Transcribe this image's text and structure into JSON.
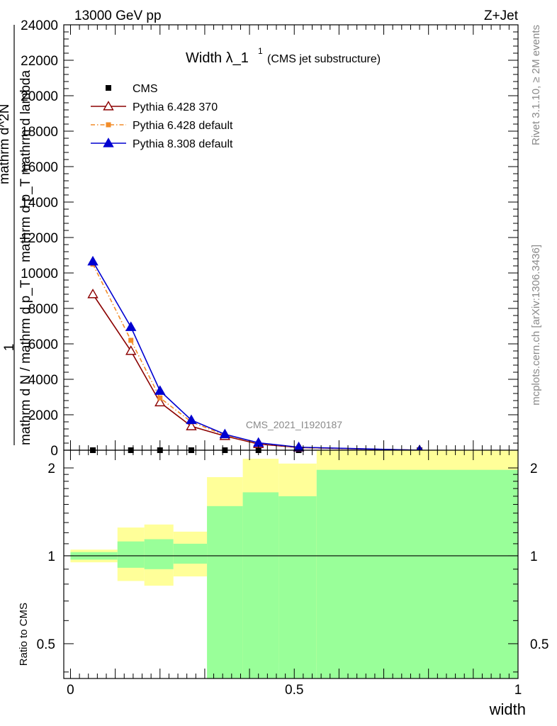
{
  "header": {
    "energy_label": "13000 GeV pp",
    "process_label": "Z+Jet"
  },
  "side_labels": {
    "rivet": "Rivet 3.1.10, ≥ 2M events",
    "mcplots": "mcplots.cern.ch [arXiv:1306.3436]"
  },
  "watermark": "CMS_2021_I1920187",
  "colors": {
    "cms": "#000000",
    "pythia6_370": "#8b0000",
    "pythia6_default": "#f28c28",
    "pythia8_default": "#0000d0",
    "band_outer": "#ffff99",
    "band_inner": "#99ff99"
  },
  "chart_data": [
    {
      "type": "line",
      "title_main": "Width λ_1",
      "title_sup": "1",
      "title_sub": "(CMS jet substructure)",
      "ylabel_lines": [
        "1",
        "mathrm d N / mathrm d p_T",
        "mathrm d^2N",
        "mathrm d p_T mathrm d lambda"
      ],
      "xlim": [
        -0.015,
        1.0
      ],
      "ylim": [
        0,
        24000
      ],
      "yticks": [
        0,
        2000,
        4000,
        6000,
        8000,
        10000,
        12000,
        14000,
        16000,
        18000,
        20000,
        22000,
        24000
      ],
      "ytick_labels": [
        "0",
        "2000",
        "4000",
        "6000",
        "8000",
        "10000",
        "12000",
        "14000",
        "16000",
        "18000",
        "20000",
        "22000",
        "24000"
      ],
      "legend_position": "top-left",
      "series": [
        {
          "name": "CMS",
          "marker": "square",
          "x": [
            0.05,
            0.135,
            0.2,
            0.27,
            0.345,
            0.42,
            0.51,
            0.78
          ],
          "y": [
            0,
            0,
            0,
            0,
            0,
            0,
            0,
            0
          ]
        },
        {
          "name": "Pythia 6.428 370",
          "marker": "open-triangle",
          "line": "solid",
          "x": [
            0.05,
            0.135,
            0.2,
            0.27,
            0.345,
            0.42,
            0.51,
            0.78
          ],
          "y": [
            8800,
            5600,
            2700,
            1350,
            800,
            350,
            150,
            0
          ]
        },
        {
          "name": "Pythia 6.428 default",
          "marker": "square",
          "line": "dashdot",
          "x": [
            0.05,
            0.135,
            0.2,
            0.27,
            0.345,
            0.42,
            0.51,
            0.78
          ],
          "y": [
            10500,
            6200,
            2950,
            1600,
            850,
            400,
            160,
            0
          ]
        },
        {
          "name": "Pythia 8.308 default",
          "marker": "triangle",
          "line": "solid",
          "x": [
            0.05,
            0.135,
            0.2,
            0.27,
            0.345,
            0.42,
            0.51,
            0.78
          ],
          "y": [
            10650,
            6950,
            3350,
            1700,
            900,
            420,
            170,
            0
          ]
        }
      ]
    },
    {
      "type": "area",
      "ylabel": "Ratio to CMS",
      "xlabel": "width",
      "scale": "log",
      "ylim": [
        0.38,
        2.3
      ],
      "yticks": [
        0.5,
        1,
        2
      ],
      "ytick_labels": [
        "0.5",
        "1",
        "2"
      ],
      "xticks": [
        0,
        0.5,
        1
      ],
      "xtick_labels": [
        "0",
        "0.5",
        "1"
      ],
      "reference_line": 1,
      "bins": [
        {
          "x0": 0.0,
          "x1": 0.105,
          "inner": [
            0.97,
            1.03
          ],
          "outer": [
            0.95,
            1.05
          ]
        },
        {
          "x0": 0.105,
          "x1": 0.165,
          "inner": [
            0.91,
            1.12
          ],
          "outer": [
            0.82,
            1.25
          ]
        },
        {
          "x0": 0.165,
          "x1": 0.23,
          "inner": [
            0.9,
            1.14
          ],
          "outer": [
            0.79,
            1.28
          ]
        },
        {
          "x0": 0.23,
          "x1": 0.305,
          "inner": [
            0.94,
            1.1
          ],
          "outer": [
            0.85,
            1.21
          ]
        },
        {
          "x0": 0.305,
          "x1": 0.385,
          "inner": [
            0.38,
            1.48
          ],
          "outer": [
            0.6,
            1.86
          ]
        },
        {
          "x0": 0.385,
          "x1": 0.465,
          "inner": [
            0.38,
            1.65
          ],
          "outer": [
            0.38,
            2.15
          ]
        },
        {
          "x0": 0.465,
          "x1": 0.55,
          "inner": [
            0.38,
            1.6
          ],
          "outer": [
            0.43,
            2.07
          ]
        },
        {
          "x0": 0.55,
          "x1": 1.0,
          "inner": [
            0.38,
            1.97
          ],
          "outer": [
            0.38,
            2.3
          ]
        }
      ]
    }
  ]
}
